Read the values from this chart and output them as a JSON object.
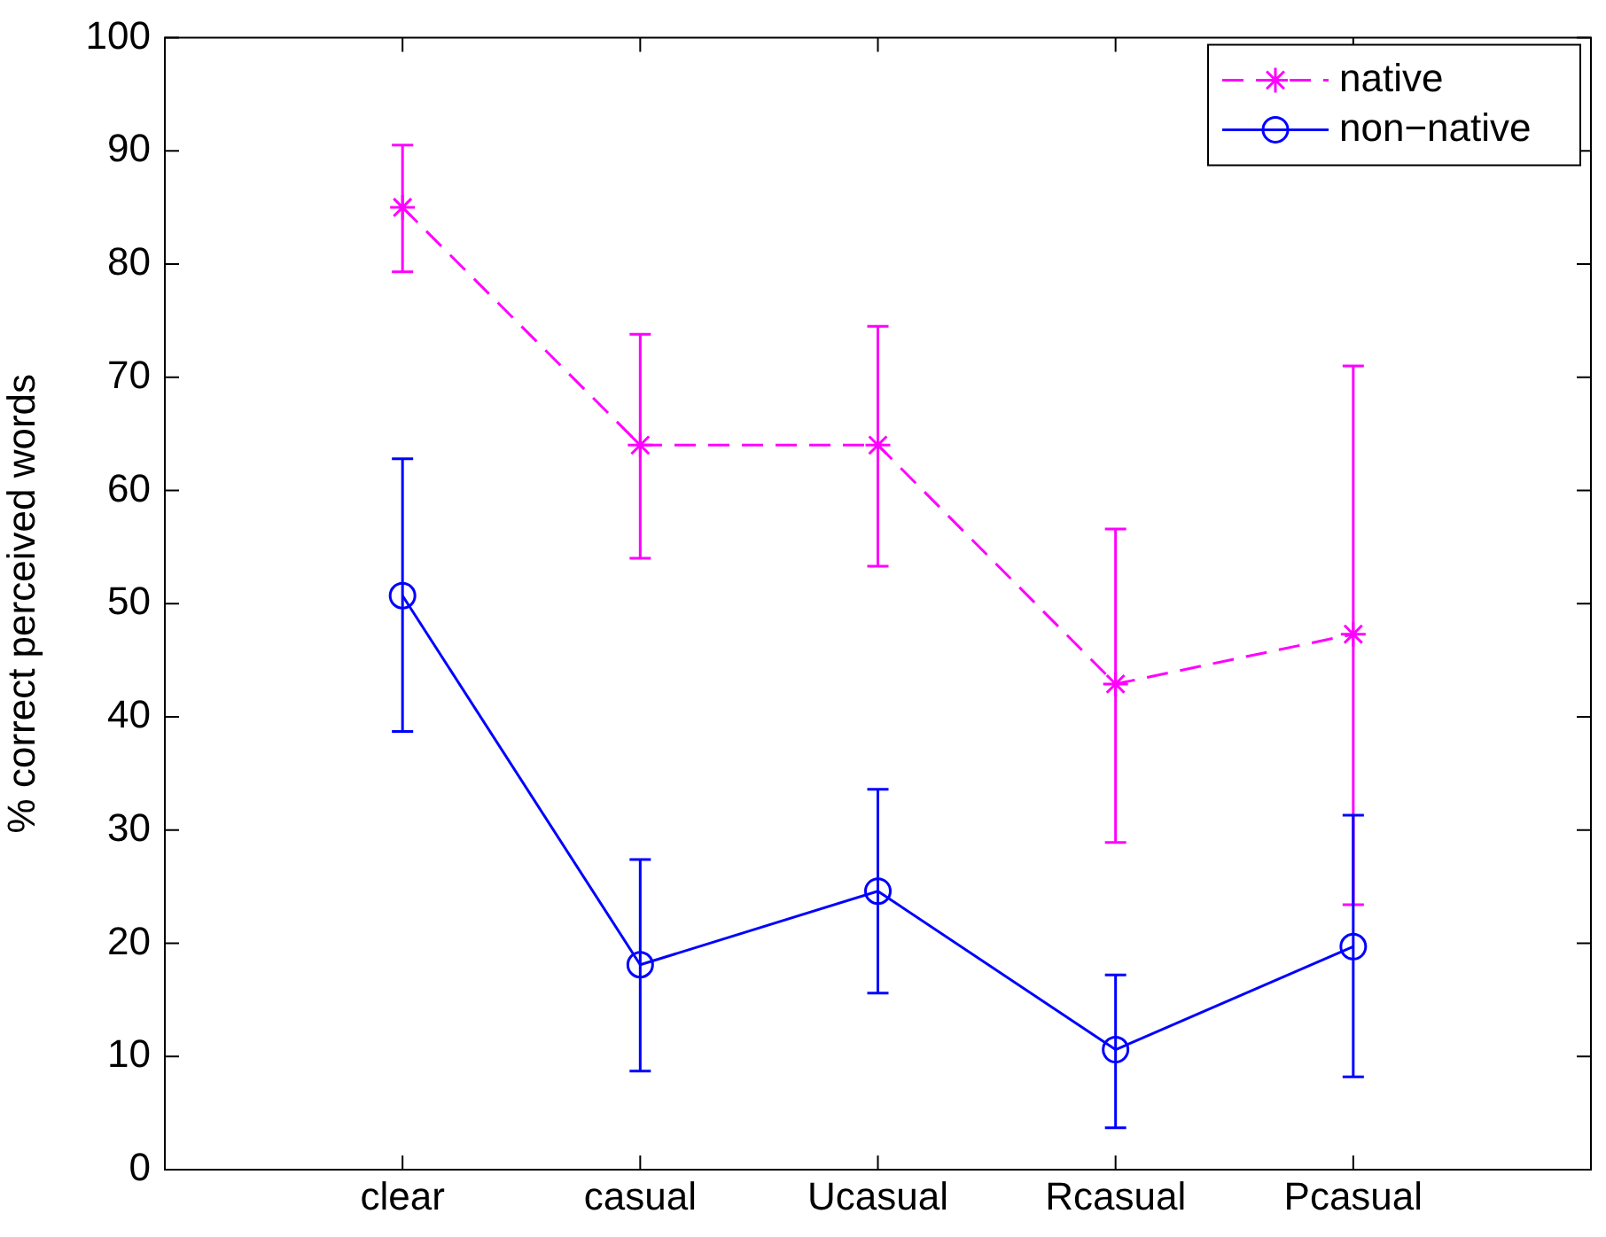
{
  "chart_data": {
    "type": "line",
    "ylabel": "% correct perceived words",
    "categories": [
      "clear",
      "casual",
      "Ucasual",
      "Rcasual",
      "Pcasual"
    ],
    "ylim": [
      0,
      100
    ],
    "yticks": [
      0,
      10,
      20,
      30,
      40,
      50,
      60,
      70,
      80,
      90,
      100
    ],
    "grid": false,
    "legend": "top right",
    "series": [
      {
        "name": "native",
        "color": "#ff00ff",
        "marker": "cross",
        "line_style": "dashed",
        "values": [
          85,
          64,
          64,
          42.9,
          47.3
        ],
        "errors": [
          [
            79.3,
            90.5
          ],
          [
            54,
            73.8
          ],
          [
            53.3,
            74.5
          ],
          [
            28.9,
            56.6
          ],
          [
            23.4,
            71
          ]
        ]
      },
      {
        "name": "non−native",
        "color": "#0000ff",
        "marker": "circle",
        "line_style": "solid",
        "values": [
          50.7,
          18.1,
          24.6,
          10.6,
          19.7
        ],
        "errors": [
          [
            38.7,
            62.8
          ],
          [
            8.7,
            27.4
          ],
          [
            15.6,
            33.6
          ],
          [
            3.7,
            17.2
          ],
          [
            8.2,
            31.3
          ]
        ]
      }
    ]
  }
}
